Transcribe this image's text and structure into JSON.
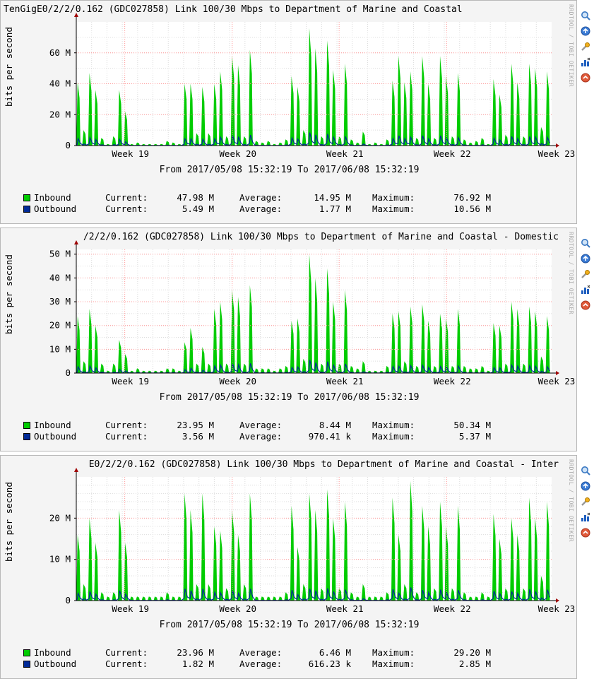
{
  "panels": [
    {
      "title": "TenGigE0/2/2/0.162 (GDC027858) Link 100/30 Mbps to Department of Marine and Coastal",
      "title_align": "l",
      "ylabel": "bits per second",
      "watermark": "RRDTOOL / TOBI OETIKER",
      "yticks": [
        {
          "label": "0",
          "v": 0
        },
        {
          "label": "20 M",
          "v": 20
        },
        {
          "label": "40 M",
          "v": 40
        },
        {
          "label": "60 M",
          "v": 60
        }
      ],
      "ymax": 80,
      "xticks": [
        "Week 19",
        "Week 20",
        "Week 21",
        "Week 22",
        "Week 23"
      ],
      "period": "From 2017/05/08 15:32:19 To 2017/06/08 15:32:19",
      "peaks": [
        41,
        10,
        47,
        36,
        5,
        1,
        6,
        36,
        22,
        1,
        2,
        1,
        1,
        1,
        1,
        3,
        2,
        1,
        40,
        40,
        8,
        38,
        8,
        40,
        48,
        6,
        58,
        52,
        6,
        62,
        3,
        2,
        3,
        1,
        2,
        4,
        45,
        38,
        10,
        76,
        63,
        6,
        68,
        49,
        6,
        53,
        4,
        2,
        9,
        1,
        2,
        1,
        4,
        42,
        58,
        41,
        48,
        5,
        58,
        40,
        5,
        58,
        45,
        6,
        47,
        4,
        2,
        3,
        5,
        1,
        43,
        33,
        7,
        53,
        41,
        6,
        53,
        50,
        12,
        48
      ],
      "legend": [
        {
          "name": "Inbound",
          "color": "#00cc00",
          "current": "47.98 M",
          "average": "14.95 M",
          "maximum": "76.92 M"
        },
        {
          "name": "Outbound",
          "color": "#002a97",
          "current": "5.49 M",
          "average": "1.77 M",
          "maximum": "10.56 M"
        }
      ]
    },
    {
      "title": "/2/2/0.162 (GDC027858) Link 100/30 Mbps to Department of Marine and Coastal - Domestic",
      "title_align": "r",
      "ylabel": "bits per second",
      "watermark": "RRDTOOL / TOBI OETIKER",
      "yticks": [
        {
          "label": "0",
          "v": 0
        },
        {
          "label": "10 M",
          "v": 10
        },
        {
          "label": "20 M",
          "v": 20
        },
        {
          "label": "30 M",
          "v": 30
        },
        {
          "label": "40 M",
          "v": 40
        },
        {
          "label": "50 M",
          "v": 50
        }
      ],
      "ymax": 52,
      "xticks": [
        "Week 19",
        "Week 20",
        "Week 21",
        "Week 22",
        "Week 23"
      ],
      "period": "From 2017/05/08 15:32:19 To 2017/06/08 15:32:19",
      "peaks": [
        24,
        5,
        27,
        20,
        4,
        1,
        4,
        14,
        8,
        1,
        2,
        1,
        1,
        1,
        1,
        2,
        2,
        1,
        13,
        19,
        4,
        11,
        4,
        27,
        30,
        4,
        35,
        32,
        4,
        37,
        2,
        2,
        2,
        1,
        2,
        3,
        22,
        23,
        6,
        50,
        40,
        4,
        44,
        30,
        4,
        35,
        3,
        2,
        5,
        1,
        1,
        1,
        3,
        25,
        26,
        5,
        28,
        3,
        29,
        22,
        3,
        25,
        23,
        3,
        27,
        3,
        2,
        2,
        3,
        1,
        21,
        20,
        4,
        30,
        27,
        4,
        28,
        26,
        7,
        24
      ],
      "legend": [
        {
          "name": "Inbound",
          "color": "#00cc00",
          "current": "23.95 M",
          "average": "8.44 M",
          "maximum": "50.34 M"
        },
        {
          "name": "Outbound",
          "color": "#002a97",
          "current": "3.56 M",
          "average": "970.41 k",
          "maximum": "5.37 M"
        }
      ]
    },
    {
      "title": "E0/2/2/0.162 (GDC027858) Link 100/30 Mbps to Department of Marine and Coastal - Inter",
      "title_align": "r",
      "ylabel": "bits per second",
      "watermark": "RRDTOOL / TOBI OETIKER",
      "yticks": [
        {
          "label": "0",
          "v": 0
        },
        {
          "label": "10 M",
          "v": 10
        },
        {
          "label": "20 M",
          "v": 20
        }
      ],
      "ymax": 30,
      "xticks": [
        "Week 19",
        "Week 20",
        "Week 21",
        "Week 22",
        "Week 23"
      ],
      "period": "From 2017/05/08 15:32:19 To 2017/06/08 15:32:19",
      "peaks": [
        16,
        4,
        20,
        14,
        2,
        1,
        2,
        22,
        14,
        1,
        1,
        1,
        1,
        1,
        1,
        2,
        1,
        1,
        26,
        22,
        4,
        26,
        4,
        18,
        17,
        3,
        22,
        16,
        4,
        26,
        1,
        1,
        1,
        1,
        1,
        2,
        23,
        13,
        4,
        26,
        22,
        3,
        27,
        20,
        3,
        24,
        2,
        1,
        4,
        1,
        1,
        1,
        2,
        25,
        16,
        4,
        29,
        2,
        23,
        18,
        3,
        24,
        18,
        3,
        23,
        2,
        1,
        1,
        2,
        1,
        21,
        15,
        3,
        20,
        16,
        3,
        25,
        20,
        6,
        24
      ],
      "legend": [
        {
          "name": "Inbound",
          "color": "#00cc00",
          "current": "23.96 M",
          "average": "6.46 M",
          "maximum": "29.20 M"
        },
        {
          "name": "Outbound",
          "color": "#002a97",
          "current": "1.82 M",
          "average": "616.23 k",
          "maximum": "2.85 M"
        }
      ]
    }
  ],
  "legend_labels": {
    "current": "Current:",
    "average": "Average:",
    "maximum": "Maximum:"
  },
  "side_icons": [
    "zoom-icon",
    "refresh-icon",
    "wrench-icon",
    "chart-icon",
    "remove-icon"
  ]
}
